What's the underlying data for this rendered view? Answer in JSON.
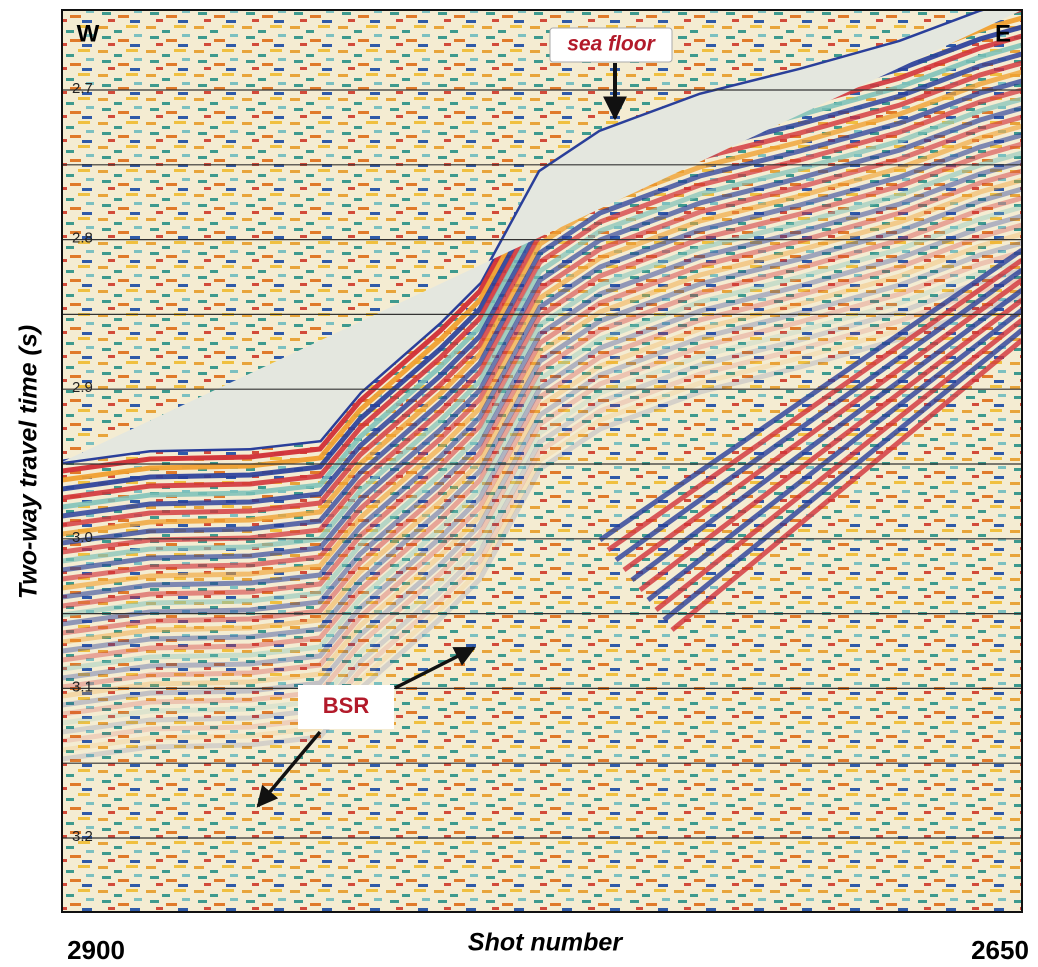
{
  "figure": {
    "corner_labels": {
      "left": "W",
      "right": "E"
    },
    "annotations": {
      "sea_floor": "sea floor",
      "bsr": "BSR"
    },
    "y_axis": {
      "label": "Two-way travel time (s)",
      "ticks": [
        "2.7",
        "2.8",
        "2.9",
        "3.0",
        "3.1",
        "3.2"
      ]
    },
    "x_axis": {
      "label": "Shot number",
      "start": "2900",
      "end": "2650"
    }
  }
}
